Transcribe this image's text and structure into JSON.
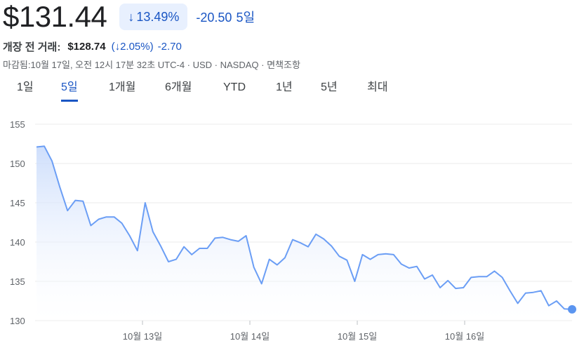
{
  "header": {
    "price": "$131.44",
    "pct_arrow": "↓",
    "pct_change": "13.49%",
    "abs_change": "-20.50",
    "period": "5일"
  },
  "premarket": {
    "label": "개장 전 거래:",
    "price": "$128.74",
    "pct": "(↓2.05%)",
    "change": "-2.70"
  },
  "meta": "마감됨:10월 17일, 오전 12시 17분 32초 UTC-4 · USD · NASDAQ · 면책조항",
  "tabs": [
    {
      "label": "1일",
      "active": false
    },
    {
      "label": "5일",
      "active": true
    },
    {
      "label": "1개월",
      "active": false
    },
    {
      "label": "6개월",
      "active": false
    },
    {
      "label": "YTD",
      "active": false
    },
    {
      "label": "1년",
      "active": false
    },
    {
      "label": "5년",
      "active": false
    },
    {
      "label": "최대",
      "active": false
    }
  ],
  "colors": {
    "line": "#6b9ef5",
    "fill_top": "#c9dbfb",
    "grid": "#ebebeb",
    "accent": "#1a56c4",
    "end_dot": "#5b95f0"
  },
  "chart_data": {
    "type": "area",
    "ylim": [
      130,
      155
    ],
    "yticks": [
      155,
      150,
      145,
      140,
      135,
      130
    ],
    "xticks": [
      "10월 13일",
      "10월 14일",
      "10월 15일",
      "10월 16일"
    ],
    "xtick_positions": [
      1,
      2,
      3,
      4
    ],
    "x_range": [
      0,
      5
    ],
    "grid": true,
    "values": [
      152.1,
      152.2,
      150.3,
      147.0,
      144.0,
      145.3,
      145.2,
      142.1,
      142.9,
      143.2,
      143.2,
      142.4,
      140.8,
      138.9,
      145.0,
      141.3,
      139.5,
      137.5,
      137.8,
      139.4,
      138.4,
      139.2,
      139.2,
      140.5,
      140.6,
      140.3,
      140.1,
      140.8,
      136.8,
      134.7,
      137.8,
      137.1,
      138.0,
      140.3,
      139.9,
      139.4,
      141.0,
      140.4,
      139.5,
      138.2,
      137.7,
      135.0,
      138.4,
      137.8,
      138.4,
      138.5,
      138.4,
      137.2,
      136.7,
      136.9,
      135.3,
      135.8,
      134.2,
      135.1,
      134.1,
      134.2,
      135.5,
      135.6,
      135.6,
      136.3,
      135.5,
      133.8,
      132.2,
      133.5,
      133.6,
      133.8,
      131.9,
      132.5,
      131.5,
      131.44
    ]
  }
}
